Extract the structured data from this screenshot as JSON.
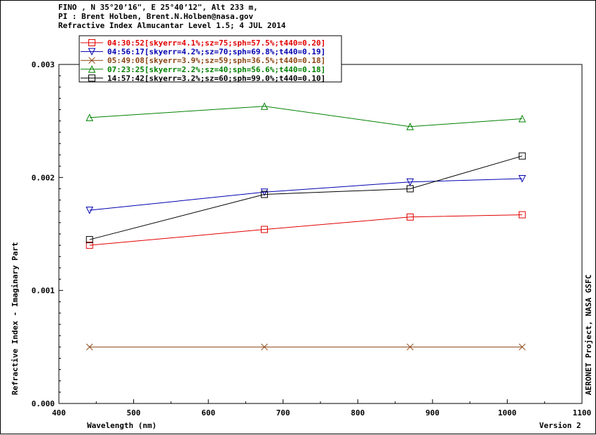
{
  "header": {
    "line1": "FINO , N 35°20’16\", E 25°40’12\", Alt 233 m,",
    "line2": "PI : Brent Holben, Brent.N.Holben@nasa.gov",
    "line3": "Refractive Index Almucantar Level 1.5; 4 JUL 2014"
  },
  "side_label": "AERONET Project, NASA GSFC",
  "version_label": "Version 2",
  "chart_data": {
    "type": "line",
    "xlabel": "Wavelength (nm)",
    "ylabel": "Refractive Index - Imaginary Part",
    "xlim": [
      400,
      1100
    ],
    "ylim": [
      0,
      0.003
    ],
    "x_ticks": [
      400,
      500,
      600,
      700,
      800,
      900,
      1000,
      1100
    ],
    "x_tick_labels": [
      "400",
      "500",
      "600",
      "700",
      "800",
      "900",
      "1000",
      "1100"
    ],
    "y_ticks": [
      0,
      0.001,
      0.002,
      0.003
    ],
    "y_tick_labels": [
      "0.000",
      "0.001",
      "0.002",
      "0.003"
    ],
    "grid": false,
    "legend_position": "top-left",
    "x": [
      441,
      675,
      870,
      1020
    ],
    "series": [
      {
        "name": "04:30:52[skyerr=4.1%;sz=75;sph=57.5%;t440=0.20]",
        "color": "#e00000",
        "marker": "square",
        "values": [
          0.0014,
          0.00154,
          0.00165,
          0.00167
        ]
      },
      {
        "name": "04:56:17[skyerr=4.2%;sz=70;sph=69.8%;t440=0.19]",
        "color": "#0000b0",
        "marker": "triangle-down",
        "values": [
          0.00171,
          0.00187,
          0.00196,
          0.00199
        ]
      },
      {
        "name": "05:49:08[skyerr=3.9%;sz=59;sph=36.5%;t440=0.18]",
        "color": "#8b4513",
        "marker": "x",
        "values": [
          0.0005,
          0.0005,
          0.0005,
          0.0005
        ]
      },
      {
        "name": "07:23:25[skyerr=2.2%;sz=40;sph=56.6%;t440=0.18]",
        "color": "#008000",
        "marker": "triangle-up",
        "values": [
          0.00253,
          0.00263,
          0.00245,
          0.00252
        ]
      },
      {
        "name": "14:57:42[skyerr=3.2%;sz=60;sph=99.0%;t440=0.10]",
        "color": "#000000",
        "marker": "square",
        "values": [
          0.00145,
          0.00185,
          0.0019,
          0.00219
        ]
      }
    ]
  }
}
